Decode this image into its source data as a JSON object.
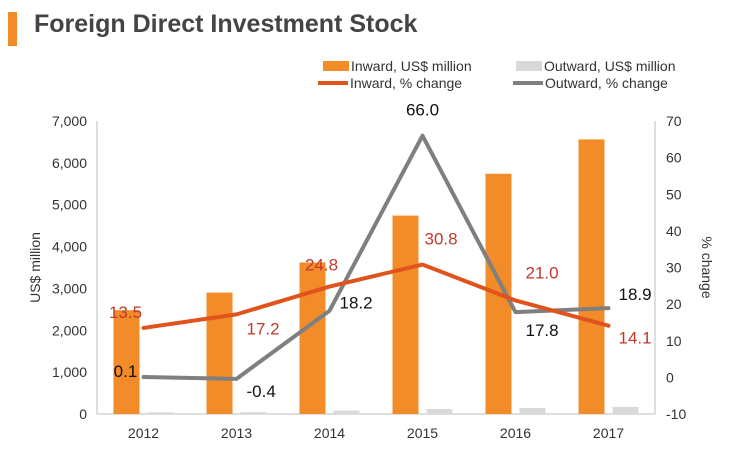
{
  "title": "Foreign Direct Investment Stock",
  "colors": {
    "accent": "#f28c28",
    "inward_bar": "#f28c28",
    "outward_bar": "#d9d9d9",
    "inward_line": "#e0531c",
    "outward_line": "#7f7f7f",
    "inward_label": "#c0392b",
    "text": "#333333"
  },
  "chart_data": {
    "type": "bar+line",
    "categories": [
      "2012",
      "2013",
      "2014",
      "2015",
      "2016",
      "2017"
    ],
    "series": [
      {
        "name": "Inward, US$ million",
        "kind": "bar",
        "axis": "left",
        "values": [
          2480,
          2900,
          3620,
          4740,
          5740,
          6560
        ]
      },
      {
        "name": "Outward, US$ million",
        "kind": "bar",
        "axis": "left",
        "values": [
          40,
          45,
          80,
          120,
          145,
          170
        ]
      },
      {
        "name": "Inward, % change",
        "kind": "line",
        "axis": "right",
        "values": [
          13.5,
          17.2,
          24.8,
          30.8,
          21.0,
          14.1
        ],
        "labels": [
          "13.5",
          "17.2",
          "24.8",
          "30.8",
          "21.0",
          "14.1"
        ]
      },
      {
        "name": "Outward, % change",
        "kind": "line",
        "axis": "right",
        "values": [
          0.1,
          -0.4,
          18.2,
          66.0,
          17.8,
          18.9
        ],
        "labels": [
          "0.1",
          "-0.4",
          "18.2",
          "66.0",
          "17.8",
          "18.9"
        ]
      }
    ],
    "ylabel": "US$ million",
    "y2label": "% change",
    "ylim": [
      0,
      7000
    ],
    "y2lim": [
      -10,
      70
    ],
    "yticks": [
      "0",
      "1,000",
      "2,000",
      "3,000",
      "4,000",
      "5,000",
      "6,000",
      "7,000"
    ],
    "y2ticks": [
      "-10",
      "0",
      "10",
      "20",
      "30",
      "40",
      "50",
      "60",
      "70"
    ],
    "legend_position": "top-right"
  }
}
